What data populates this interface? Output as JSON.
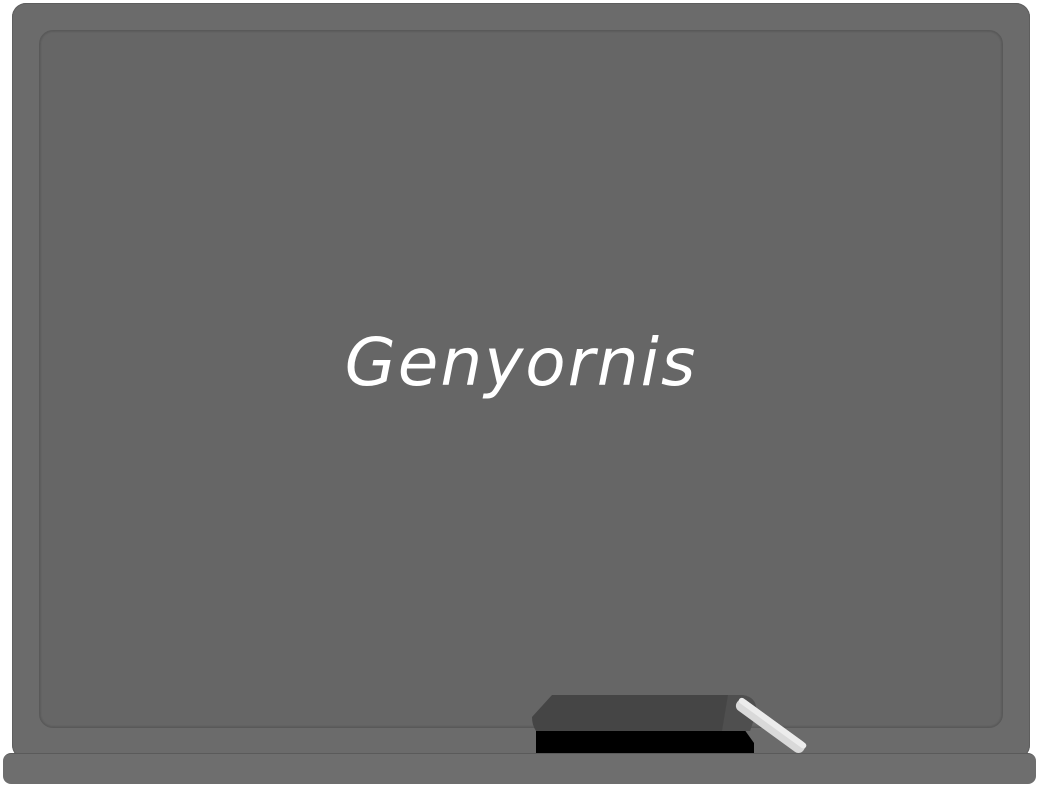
{
  "board": {
    "word": "Genyornis"
  },
  "items": {
    "eraser_icon": "eraser-icon",
    "chalk_icon": "chalk-icon"
  },
  "colors": {
    "frame": "#6b6b6b",
    "surface": "#666666",
    "chalk": "#ffffff",
    "eraser_top": "#4a4a4a",
    "eraser_base": "#000000"
  }
}
